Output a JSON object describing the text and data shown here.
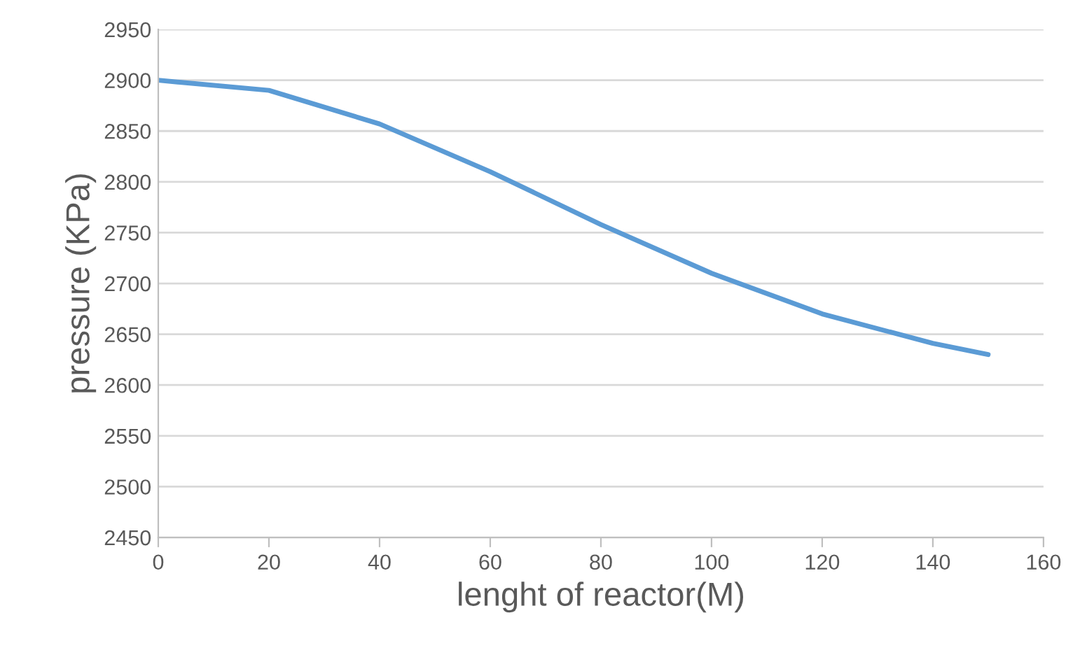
{
  "chart_data": {
    "type": "line",
    "xlabel": "lenght of reactor(M)",
    "ylabel": "pressure (KPa)",
    "x": [
      0,
      20,
      40,
      60,
      80,
      100,
      120,
      140,
      150
    ],
    "series": [
      {
        "color": "#5b9bd5",
        "values": [
          2900,
          2890,
          2857,
          2810,
          2758,
          2710,
          2670,
          2641,
          2630
        ]
      }
    ],
    "xlim": [
      0,
      160
    ],
    "xticks": [
      0,
      20,
      40,
      60,
      80,
      100,
      120,
      140,
      160
    ],
    "ylim": [
      2450,
      2950
    ],
    "yticks": [
      2450,
      2500,
      2550,
      2600,
      2650,
      2700,
      2750,
      2800,
      2850,
      2900,
      2950
    ],
    "grid": "y",
    "legend": false,
    "marker": "none",
    "line_style": "solid"
  }
}
